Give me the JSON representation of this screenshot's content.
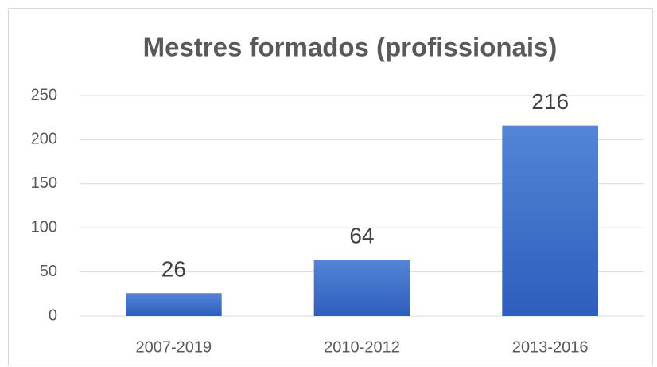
{
  "chart_data": {
    "type": "bar",
    "title": "Mestres formados (profissionais)",
    "categories": [
      "2007-2019",
      "2010-2012",
      "2013-2016"
    ],
    "values": [
      26,
      64,
      216
    ],
    "color": "#3a6ac8",
    "ylim": [
      0,
      250
    ],
    "yticks": [
      0,
      50,
      100,
      150,
      200,
      250
    ],
    "grid": true,
    "data_labels": true
  }
}
